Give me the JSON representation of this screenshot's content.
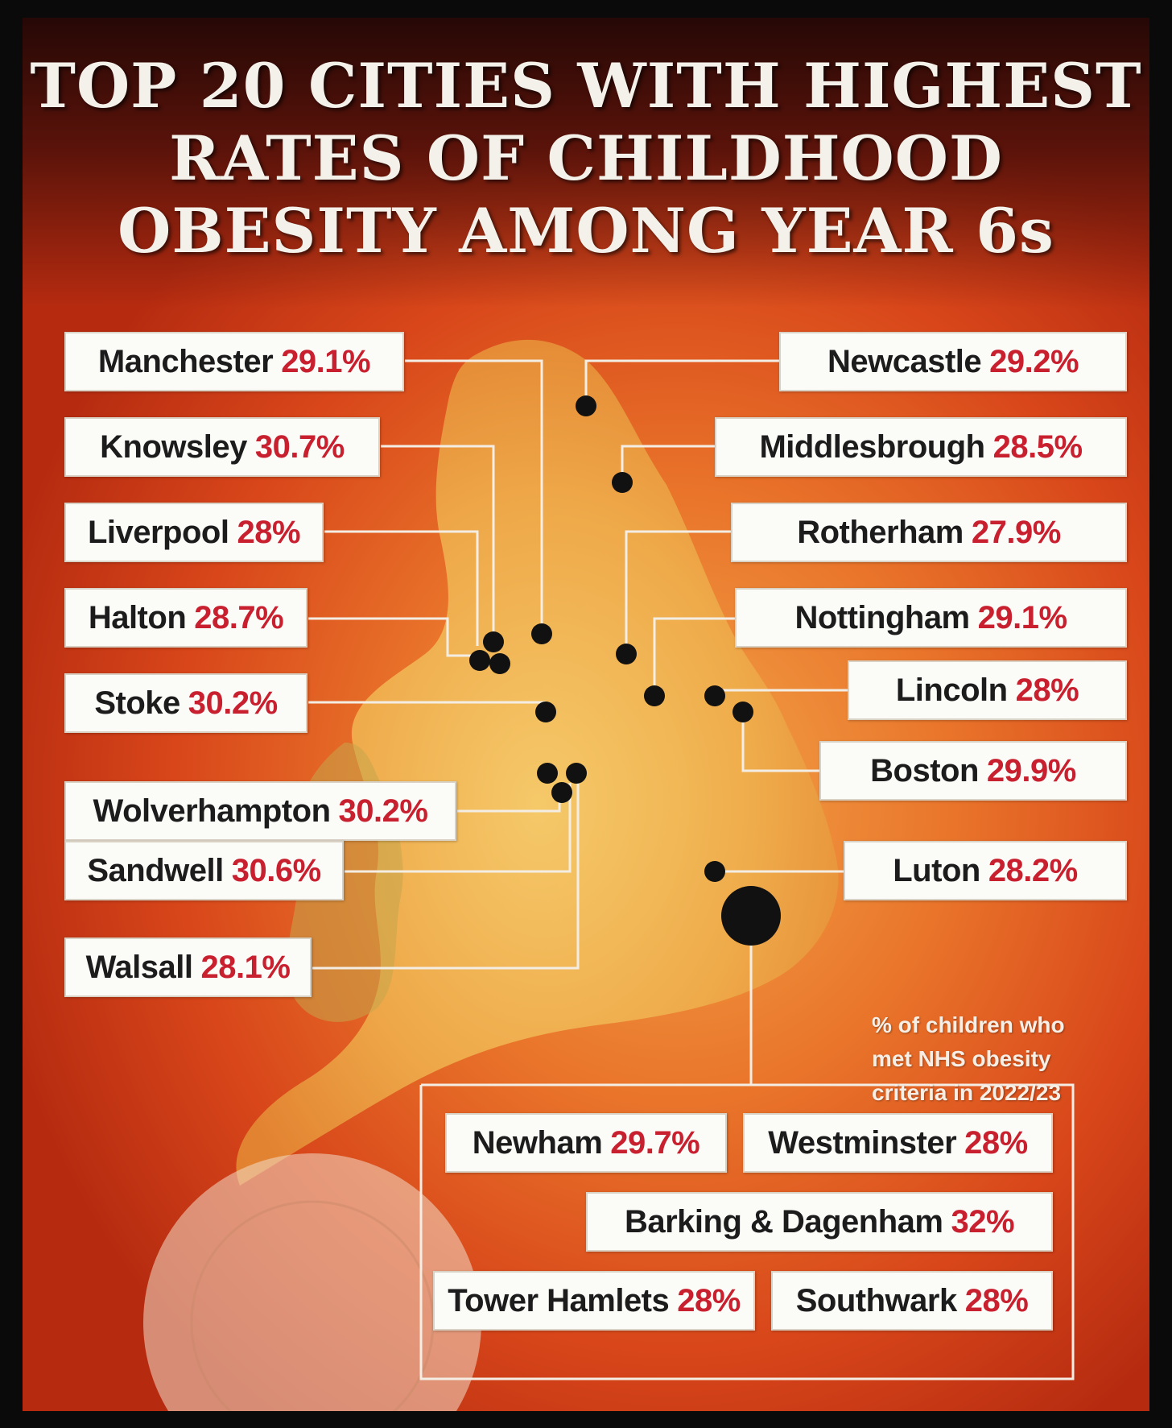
{
  "title_lines": [
    "TOP 20 CITIES WITH HIGHEST",
    "RATES OF CHILDHOOD",
    "OBESITY AMONG YEAR 6s"
  ],
  "caption_lines": [
    "% of children who",
    "met NHS obesity",
    "criteria in 2022/23"
  ],
  "colors": {
    "city_text": "#1c1c1c",
    "percent_text": "#c8202e",
    "label_bg": "#fbfbf8",
    "dot": "#111111"
  },
  "cities": [
    {
      "id": "manchester",
      "name": "Manchester",
      "rate": "29.1%"
    },
    {
      "id": "knowsley",
      "name": "Knowsley",
      "rate": "30.7%"
    },
    {
      "id": "liverpool",
      "name": "Liverpool",
      "rate": "28%"
    },
    {
      "id": "halton",
      "name": "Halton",
      "rate": "28.7%"
    },
    {
      "id": "stoke",
      "name": "Stoke",
      "rate": "30.2%"
    },
    {
      "id": "wolverhampton",
      "name": "Wolverhampton",
      "rate": "30.2%"
    },
    {
      "id": "sandwell",
      "name": "Sandwell",
      "rate": "30.6%"
    },
    {
      "id": "walsall",
      "name": "Walsall",
      "rate": "28.1%"
    },
    {
      "id": "newcastle",
      "name": "Newcastle",
      "rate": "29.2%"
    },
    {
      "id": "middlesbrough",
      "name": "Middlesbrough",
      "rate": "28.5%"
    },
    {
      "id": "rotherham",
      "name": "Rotherham",
      "rate": "27.9%"
    },
    {
      "id": "nottingham",
      "name": "Nottingham",
      "rate": "29.1%"
    },
    {
      "id": "lincoln",
      "name": "Lincoln",
      "rate": "28%"
    },
    {
      "id": "boston",
      "name": "Boston",
      "rate": "29.9%"
    },
    {
      "id": "luton",
      "name": "Luton",
      "rate": "28.2%"
    },
    {
      "id": "newham",
      "name": "Newham",
      "rate": "29.7%"
    },
    {
      "id": "westminster",
      "name": "Westminster",
      "rate": "28%"
    },
    {
      "id": "barking",
      "name": "Barking & Dagenham",
      "rate": "32%"
    },
    {
      "id": "tower-hamlets",
      "name": "Tower Hamlets",
      "rate": "28%"
    },
    {
      "id": "southwark",
      "name": "Southwark",
      "rate": "28%"
    }
  ]
}
